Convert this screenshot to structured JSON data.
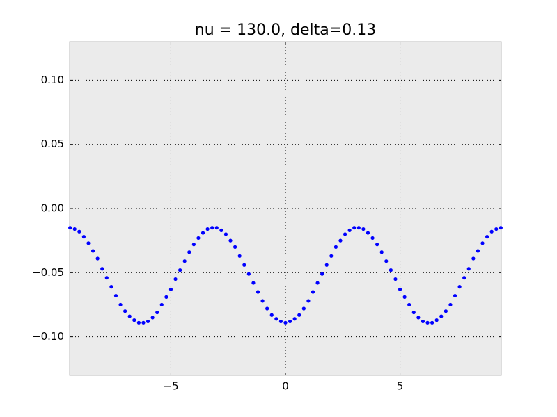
{
  "chart_data": {
    "type": "scatter",
    "title": "nu = 130.0, delta=0.13",
    "x": [
      -9.4,
      -9.2,
      -9.0,
      -8.8,
      -8.6,
      -8.4,
      -8.2,
      -8.0,
      -7.8,
      -7.6,
      -7.4,
      -7.2,
      -7.0,
      -6.8,
      -6.6,
      -6.4,
      -6.2,
      -6.0,
      -5.8,
      -5.6,
      -5.4,
      -5.2,
      -5.0,
      -4.8,
      -4.6,
      -4.4,
      -4.2,
      -4.0,
      -3.8,
      -3.6,
      -3.4,
      -3.2,
      -3.0,
      -2.8,
      -2.6,
      -2.4,
      -2.2,
      -2.0,
      -1.8,
      -1.6,
      -1.4,
      -1.2,
      -1.0,
      -0.8,
      -0.6,
      -0.4,
      -0.2,
      0,
      0.2,
      0.4,
      0.6,
      0.8,
      1.0,
      1.2,
      1.4,
      1.6,
      1.8,
      2.0,
      2.2,
      2.4,
      2.6,
      2.8,
      3.0,
      3.2,
      3.4,
      3.6,
      3.8,
      4.0,
      4.2,
      4.4,
      4.6,
      4.8,
      5.0,
      5.2,
      5.4,
      5.6,
      5.8,
      6.0,
      6.2,
      6.4,
      6.6,
      6.8,
      7.0,
      7.2,
      7.4,
      7.6,
      7.8,
      8.0,
      8.2,
      8.4,
      8.6,
      8.8,
      9.0,
      9.2,
      9.4
    ],
    "series": [
      {
        "color": "#0000ff",
        "values": [
          -0.015,
          -0.016,
          -0.018,
          -0.022,
          -0.027,
          -0.033,
          -0.039,
          -0.047,
          -0.054,
          -0.061,
          -0.068,
          -0.075,
          -0.08,
          -0.084,
          -0.087,
          -0.089,
          -0.089,
          -0.088,
          -0.085,
          -0.081,
          -0.075,
          -0.069,
          -0.063,
          -0.055,
          -0.048,
          -0.041,
          -0.034,
          -0.028,
          -0.023,
          -0.019,
          -0.016,
          -0.015,
          -0.015,
          -0.017,
          -0.02,
          -0.025,
          -0.03,
          -0.037,
          -0.044,
          -0.051,
          -0.058,
          -0.065,
          -0.072,
          -0.078,
          -0.083,
          -0.086,
          -0.088,
          -0.089,
          -0.088,
          -0.086,
          -0.083,
          -0.078,
          -0.072,
          -0.065,
          -0.058,
          -0.051,
          -0.044,
          -0.037,
          -0.03,
          -0.025,
          -0.02,
          -0.017,
          -0.015,
          -0.015,
          -0.016,
          -0.019,
          -0.023,
          -0.028,
          -0.034,
          -0.041,
          -0.048,
          -0.055,
          -0.063,
          -0.069,
          -0.075,
          -0.081,
          -0.085,
          -0.088,
          -0.089,
          -0.089,
          -0.087,
          -0.084,
          -0.08,
          -0.075,
          -0.068,
          -0.061,
          -0.054,
          -0.047,
          -0.039,
          -0.033,
          -0.027,
          -0.022,
          -0.018,
          -0.016,
          -0.015
        ]
      }
    ],
    "xlim": [
      -9.42,
      9.42
    ],
    "ylim": [
      -0.13,
      0.13
    ],
    "xticks": [
      {
        "value": -5,
        "label": "−5"
      },
      0,
      5
    ],
    "yticks": [
      {
        "value": -0.1,
        "label": "−0.10"
      },
      {
        "value": -0.05,
        "label": "−0.05"
      },
      {
        "value": 0,
        "label": "0.00"
      },
      {
        "value": 0.05,
        "label": "0.05"
      },
      {
        "value": 0.1,
        "label": "0.10"
      }
    ],
    "grid": true,
    "background": "#ebebeb"
  }
}
